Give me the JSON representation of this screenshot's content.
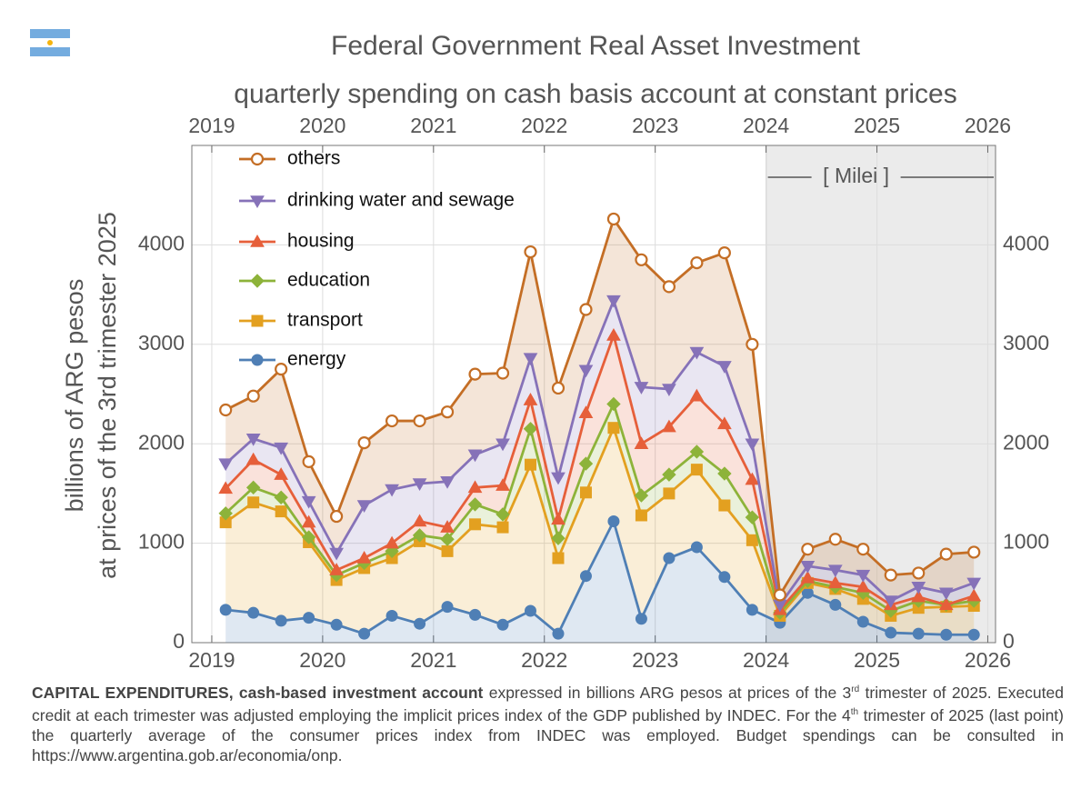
{
  "chart_data": {
    "type": "stacked_line",
    "title": "Federal Government Real Asset Investment",
    "subtitle": "quarterly spending on cash basis account at constant prices",
    "ylabel": [
      "billions of ARG pesos",
      "at prices of the 3rd trimester 2025"
    ],
    "annotation": "[ Milei ]",
    "shade_from": 2024,
    "grid": true,
    "xlim": [
      2018.82,
      2026.07
    ],
    "xticks": [
      2019,
      2020,
      2021,
      2022,
      2023,
      2024,
      2025,
      2026
    ],
    "ylim": [
      0,
      5000
    ],
    "yticks": [
      0,
      1000,
      2000,
      3000,
      4000
    ],
    "legend": "upper left",
    "x": [
      2019.125,
      2019.375,
      2019.625,
      2019.875,
      2020.125,
      2020.375,
      2020.625,
      2020.875,
      2021.125,
      2021.375,
      2021.625,
      2021.875,
      2022.125,
      2022.375,
      2022.625,
      2022.875,
      2023.125,
      2023.375,
      2023.625,
      2023.875,
      2024.125,
      2024.375,
      2024.625,
      2024.875,
      2025.125,
      2025.375,
      2025.625,
      2025.875
    ],
    "series": [
      {
        "name": "energy",
        "color": "#4f7fb5",
        "marker": "circle",
        "values": [
          330,
          300,
          220,
          250,
          180,
          90,
          270,
          190,
          360,
          280,
          180,
          320,
          90,
          670,
          1220,
          240,
          850,
          960,
          660,
          330,
          200,
          500,
          380,
          210,
          100,
          90,
          80,
          80
        ]
      },
      {
        "name": "transport",
        "color": "#e3a020",
        "marker": "square",
        "values": [
          880,
          1110,
          1100,
          760,
          450,
          660,
          580,
          830,
          560,
          910,
          980,
          1470,
          760,
          840,
          940,
          1040,
          650,
          780,
          720,
          700,
          70,
          100,
          160,
          230,
          170,
          260,
          280,
          290
        ]
      },
      {
        "name": "education",
        "color": "#8db33a",
        "marker": "diamond",
        "values": [
          90,
          150,
          140,
          50,
          50,
          50,
          70,
          60,
          120,
          200,
          130,
          360,
          200,
          290,
          240,
          200,
          190,
          180,
          320,
          230,
          30,
          20,
          20,
          60,
          50,
          70,
          20,
          50
        ]
      },
      {
        "name": "housing",
        "color": "#e65f3a",
        "marker": "triangle-up",
        "values": [
          250,
          280,
          230,
          150,
          50,
          50,
          80,
          140,
          120,
          170,
          290,
          290,
          190,
          510,
          690,
          520,
          480,
          560,
          500,
          380,
          30,
          30,
          40,
          60,
          60,
          40,
          0,
          50
        ]
      },
      {
        "name": "drinking water and sewage",
        "color": "#8672b8",
        "marker": "triangle-down",
        "values": [
          250,
          210,
          270,
          210,
          170,
          530,
          540,
          380,
          460,
          330,
          420,
          420,
          420,
          430,
          350,
          570,
          380,
          440,
          580,
          360,
          50,
          120,
          130,
          120,
          40,
          100,
          120,
          130
        ]
      },
      {
        "name": "others",
        "color": "#c46e25",
        "marker": "circle-open",
        "values": [
          540,
          430,
          790,
          400,
          370,
          630,
          690,
          630,
          700,
          810,
          710,
          1070,
          900,
          610,
          820,
          1280,
          1030,
          900,
          1140,
          1000,
          100,
          170,
          310,
          260,
          260,
          140,
          390,
          310
        ]
      }
    ]
  },
  "footnote": [
    "CAPITAL EXPENDITURES, cash-based investment account",
    " expressed in billions ARG pesos at prices of the 3",
    "rd",
    " trimester of 2025. Executed credit at each trimester was adjusted employing the implicit prices index of the GDP published by INDEC. For the 4",
    "th",
    " trimester of 2025 (last point) the quarterly average of the consumer prices index from INDEC was employed. Budget spendings can be consulted in https://www.argentina.gob.ar/economia/onp."
  ]
}
